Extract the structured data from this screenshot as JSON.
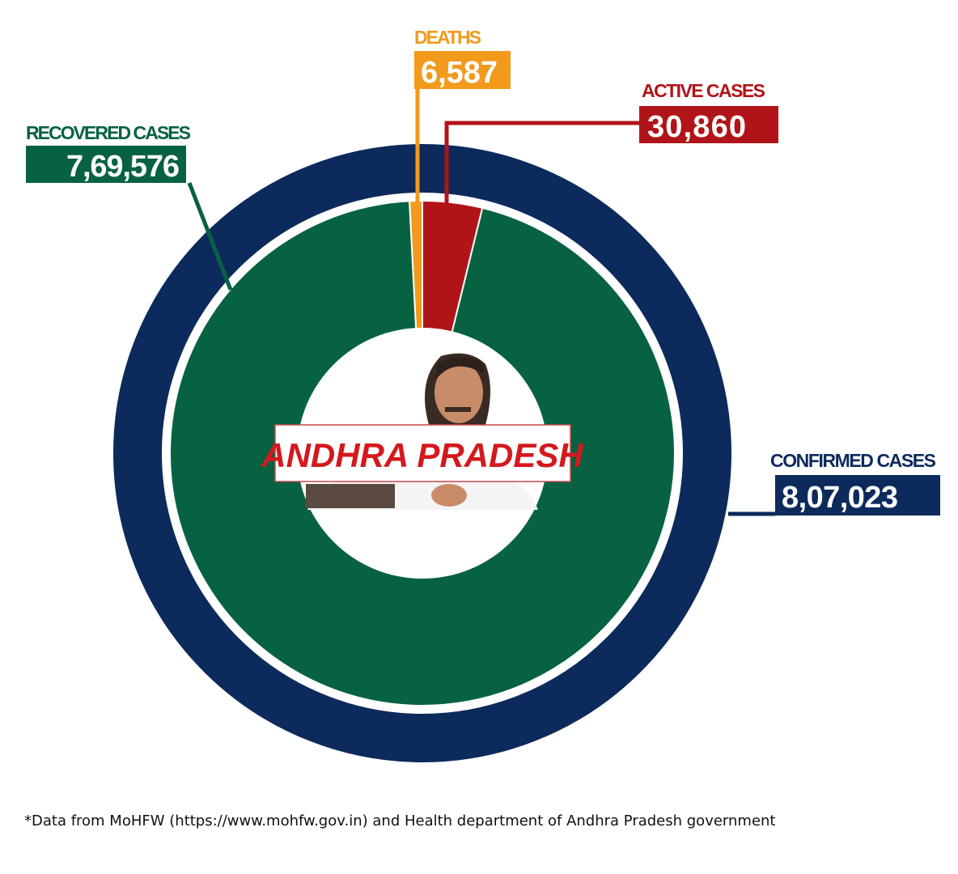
{
  "chart_data": {
    "type": "pie",
    "style": "donut",
    "center_label": "ANDHRA PRADESH",
    "outer_ring": {
      "label": "CONFIRMED CASES",
      "value": 807023,
      "display": "8,07,023",
      "color": "#0d2a5c"
    },
    "slices": [
      {
        "label": "DEATHS",
        "value": 6587,
        "display": "6,587",
        "color": "#f29a1c"
      },
      {
        "label": "ACTIVE CASES",
        "value": 30860,
        "display": "30,860",
        "color": "#b01419"
      },
      {
        "label": "RECOVERED CASES",
        "value": 769576,
        "display": "7,69,576",
        "color": "#076241"
      }
    ]
  },
  "footnote": "*Data from MoHFW (https://www.mohfw.gov.in) and Health department of Andhra Pradesh government"
}
